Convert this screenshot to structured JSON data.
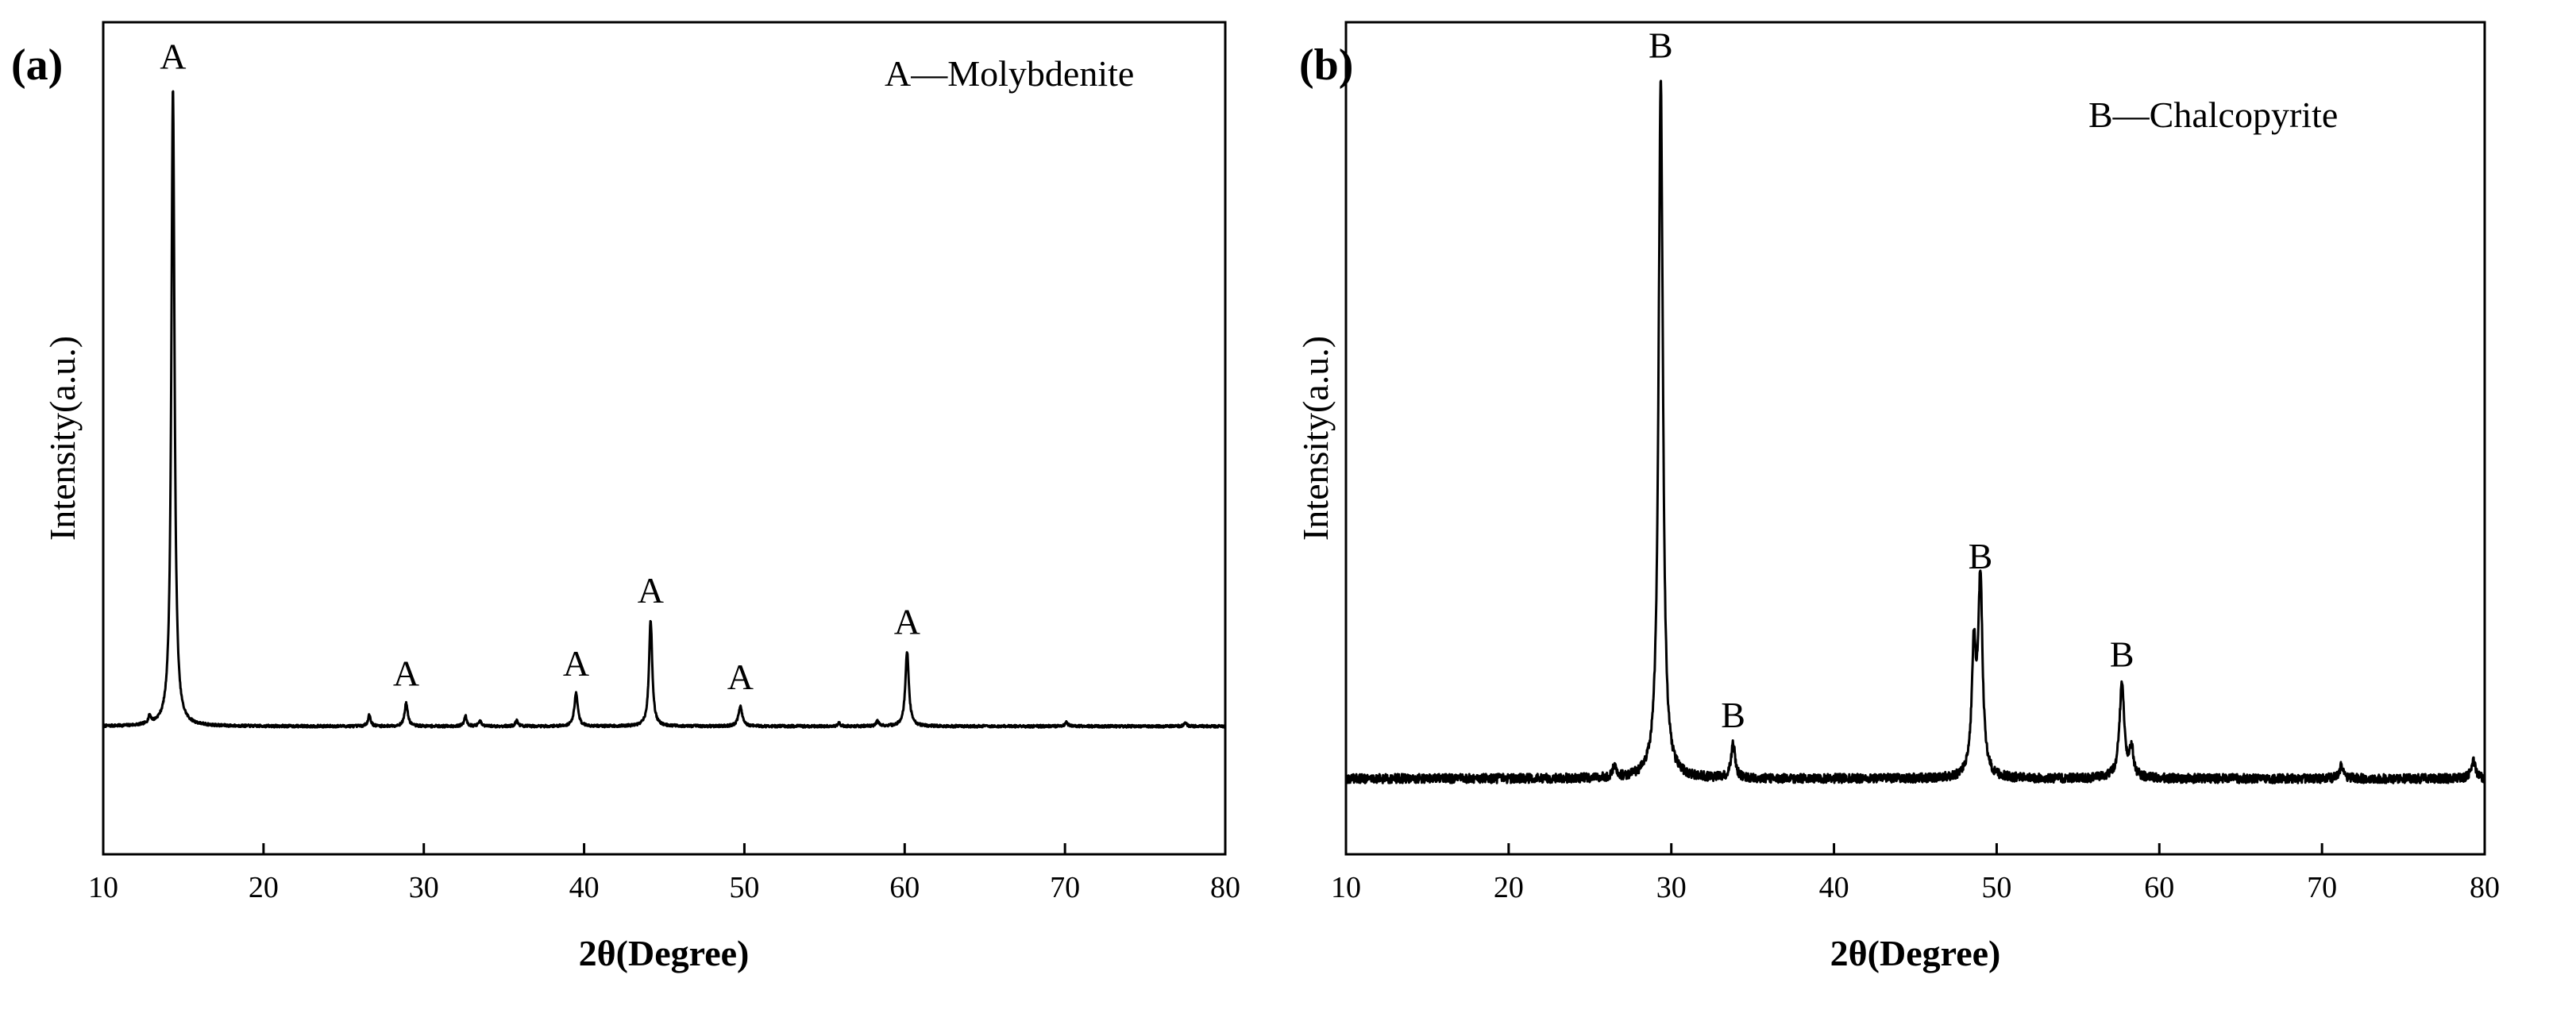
{
  "chart_data": [
    {
      "type": "line",
      "panel_label": "(a)",
      "legend_text": "A—Molybdenite",
      "xlabel": "2θ(Degree)",
      "ylabel": "Intensity(a.u.)",
      "xlim": [
        10,
        80
      ],
      "ylim": [
        -0.2,
        1.1
      ],
      "x_ticks": [
        10,
        20,
        30,
        40,
        50,
        60,
        70,
        80
      ],
      "y_ticks_shown": false,
      "baseline": 0,
      "noise": 0.002,
      "peaks": [
        {
          "x": 12.9,
          "height": 0.012,
          "width": 0.1
        },
        {
          "x": 14.35,
          "height": 1.0,
          "width": 0.12,
          "label": "A"
        },
        {
          "x": 26.6,
          "height": 0.018,
          "width": 0.1
        },
        {
          "x": 28.9,
          "height": 0.036,
          "width": 0.12,
          "label": "A"
        },
        {
          "x": 32.6,
          "height": 0.016,
          "width": 0.1
        },
        {
          "x": 33.5,
          "height": 0.008,
          "width": 0.1
        },
        {
          "x": 35.8,
          "height": 0.009,
          "width": 0.1
        },
        {
          "x": 39.5,
          "height": 0.052,
          "width": 0.13,
          "label": "A"
        },
        {
          "x": 44.15,
          "height": 0.166,
          "width": 0.12,
          "label": "A"
        },
        {
          "x": 49.75,
          "height": 0.031,
          "width": 0.14,
          "label": "A"
        },
        {
          "x": 55.9,
          "height": 0.005,
          "width": 0.1
        },
        {
          "x": 58.3,
          "height": 0.008,
          "width": 0.1
        },
        {
          "x": 60.15,
          "height": 0.117,
          "width": 0.13,
          "label": "A"
        },
        {
          "x": 70.1,
          "height": 0.006,
          "width": 0.1
        },
        {
          "x": 77.5,
          "height": 0.005,
          "width": 0.1
        }
      ]
    },
    {
      "type": "line",
      "panel_label": "(b)",
      "legend_text": "B—Chalcopyrite",
      "xlabel": "2θ(Degree)",
      "ylabel": "Intensity(a.u.)",
      "xlim": [
        10,
        80
      ],
      "ylim": [
        -0.1,
        1.0
      ],
      "x_ticks": [
        10,
        20,
        30,
        40,
        50,
        60,
        70,
        80
      ],
      "y_ticks_shown": false,
      "baseline": 0,
      "noise": 0.006,
      "peaks": [
        {
          "x": 26.5,
          "height": 0.015,
          "width": 0.12
        },
        {
          "x": 29.35,
          "height": 0.93,
          "width": 0.16,
          "label": "B"
        },
        {
          "x": 33.8,
          "height": 0.045,
          "width": 0.15,
          "label": "B"
        },
        {
          "x": 48.6,
          "height": 0.16,
          "width": 0.16
        },
        {
          "x": 49.0,
          "height": 0.255,
          "width": 0.16,
          "label": "B"
        },
        {
          "x": 57.7,
          "height": 0.125,
          "width": 0.18,
          "label": "B"
        },
        {
          "x": 58.3,
          "height": 0.035,
          "width": 0.15
        },
        {
          "x": 71.2,
          "height": 0.018,
          "width": 0.15
        },
        {
          "x": 79.3,
          "height": 0.025,
          "width": 0.15
        }
      ]
    }
  ]
}
